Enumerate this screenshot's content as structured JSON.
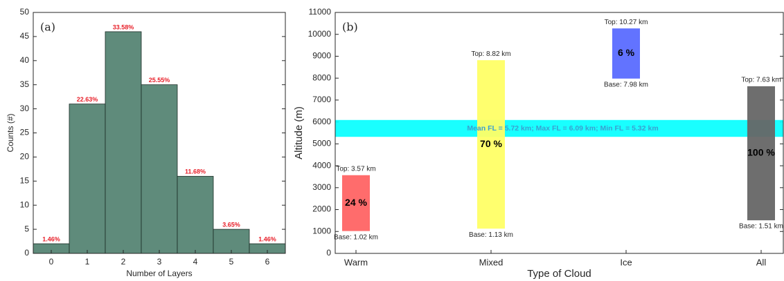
{
  "chart_data": [
    {
      "type": "bar",
      "title": "(a)",
      "xlabel": "Number of Layers",
      "ylabel": "Counts (#)",
      "categories": [
        "0",
        "1",
        "2",
        "3",
        "4",
        "5",
        "6"
      ],
      "values": [
        2,
        31,
        46,
        35,
        16,
        5,
        2
      ],
      "bar_labels": [
        "1.46%",
        "22.63%",
        "33.58%",
        "25.55%",
        "11.68%",
        "3.65%",
        "1.46%"
      ],
      "color": "#5f8b7b",
      "label_color": "#e8202a",
      "ylim": [
        0,
        50
      ],
      "yticks": [
        0,
        5,
        10,
        15,
        20,
        25,
        30,
        35,
        40,
        45,
        50
      ]
    },
    {
      "type": "floating_bar",
      "title": "(b)",
      "xlabel": "Type of Cloud",
      "ylabel": "Altitude (m)",
      "categories": [
        "Warm",
        "Mixed",
        "Ice",
        "All"
      ],
      "base": [
        1020,
        1130,
        7980,
        1510
      ],
      "top": [
        3570,
        8820,
        10270,
        7630
      ],
      "base_labels": [
        "Base: 1.02 km",
        "Base: 1.13 km",
        "Base: 7.98 km",
        "Base: 1.51 km"
      ],
      "top_labels": [
        "Top: 3.57 km",
        "Top: 8.82 km",
        "Top: 10.27 km",
        "Top: 7.63 km"
      ],
      "bar_labels": [
        "24 %",
        "70 %",
        "6 %",
        "100 %"
      ],
      "colors": [
        "#ff6464",
        "#ffff66",
        "#5a6bff",
        "#666666"
      ],
      "band": {
        "low": 5320,
        "high": 6090,
        "label": "Mean FL = 5.72 km; Max FL = 6.09 km; Min FL = 5.32 km",
        "color": "#00ffff",
        "label_color": "#3aa0d0"
      },
      "ylim": [
        0,
        11000
      ],
      "yticks": [
        0,
        1000,
        2000,
        3000,
        4000,
        5000,
        6000,
        7000,
        8000,
        9000,
        10000,
        11000
      ]
    }
  ]
}
